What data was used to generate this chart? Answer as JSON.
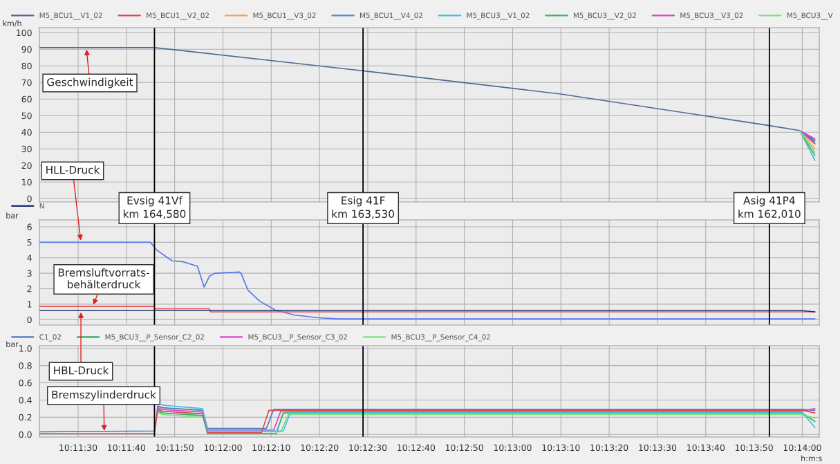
{
  "chart_data": [
    {
      "type": "line",
      "ylabel": "km/h",
      "legend": "top",
      "grid": true,
      "tick_labels": "y",
      "x": [
        10.18944,
        10.19606,
        10.20806,
        10.21944,
        10.23144,
        10.23319,
        10.23406
      ],
      "xlim": [
        10.18944,
        10.23431
      ],
      "xticks": [
        {
          "value": 10.191667,
          "label": null
        },
        {
          "value": 10.194444,
          "label": null
        },
        {
          "value": 10.197222,
          "label": null
        },
        {
          "value": 10.2,
          "label": null
        },
        {
          "value": 10.202778,
          "label": null
        },
        {
          "value": 10.205556,
          "label": null
        },
        {
          "value": 10.208333,
          "label": null
        },
        {
          "value": 10.211111,
          "label": null
        },
        {
          "value": 10.213889,
          "label": null
        },
        {
          "value": 10.216667,
          "label": null
        },
        {
          "value": 10.219444,
          "label": null
        },
        {
          "value": 10.222222,
          "label": null
        },
        {
          "value": 10.225,
          "label": null
        },
        {
          "value": 10.227778,
          "label": null
        },
        {
          "value": 10.230556,
          "label": null
        },
        {
          "value": 10.233333,
          "label": null
        }
      ],
      "ylim": [
        -2,
        103
      ],
      "yticks": [
        0,
        10,
        20,
        30,
        40,
        50,
        60,
        70,
        80,
        90,
        100
      ],
      "series": [
        {
          "name": "M5_BCU1__V1_02",
          "color": "#4f6a8f",
          "values": [
            91,
            91,
            77,
            63,
            44,
            41,
            35
          ]
        },
        {
          "name": "M5_BCU1__V2_02",
          "color": "#e04848",
          "values": [
            null,
            null,
            null,
            null,
            null,
            41,
            33
          ]
        },
        {
          "name": "M5_BCU1__V3_02",
          "color": "#f5a05a",
          "values": [
            null,
            null,
            null,
            null,
            null,
            41,
            30
          ]
        },
        {
          "name": "M5_BCU1__V4_02",
          "color": "#6080e0",
          "values": [
            null,
            null,
            null,
            null,
            null,
            41,
            34
          ]
        },
        {
          "name": "M5_BCU3__V1_02",
          "color": "#40c0e0",
          "values": [
            null,
            null,
            null,
            null,
            null,
            41,
            23
          ]
        },
        {
          "name": "M5_BCU3__V2_02",
          "color": "#40b060",
          "values": [
            null,
            null,
            null,
            null,
            null,
            41,
            26
          ]
        },
        {
          "name": "M5_BCU3__V3_02",
          "color": "#e040d0",
          "values": [
            null,
            null,
            null,
            null,
            null,
            41,
            36
          ]
        },
        {
          "name": "M5_BCU3__V",
          "color": "#80e080",
          "values": [
            null,
            null,
            null,
            null,
            null,
            41,
            28
          ]
        }
      ],
      "ref_lines": [
        {
          "axis": "x",
          "value": 10.19606,
          "color": "#000000"
        },
        {
          "axis": "x",
          "value": 10.20806,
          "color": "#000000"
        },
        {
          "axis": "x",
          "value": 10.23144,
          "color": "#000000"
        }
      ],
      "annotations": [
        {
          "text": "Geschwindigkeit",
          "x": 10.19214,
          "y": 91
        }
      ]
    },
    {
      "type": "line",
      "ylabel": "bar",
      "legend": "top",
      "grid": true,
      "tick_labels": "y",
      "xlim": [
        10.18944,
        10.23431
      ],
      "xticks": [
        {
          "value": 10.191667,
          "label": null
        },
        {
          "value": 10.194444,
          "label": null
        },
        {
          "value": 10.197222,
          "label": null
        },
        {
          "value": 10.2,
          "label": null
        },
        {
          "value": 10.202778,
          "label": null
        },
        {
          "value": 10.205556,
          "label": null
        },
        {
          "value": 10.208333,
          "label": null
        },
        {
          "value": 10.211111,
          "label": null
        },
        {
          "value": 10.213889,
          "label": null
        },
        {
          "value": 10.216667,
          "label": null
        },
        {
          "value": 10.219444,
          "label": null
        },
        {
          "value": 10.222222,
          "label": null
        },
        {
          "value": 10.225,
          "label": null
        },
        {
          "value": 10.227778,
          "label": null
        },
        {
          "value": 10.230556,
          "label": null
        },
        {
          "value": 10.233333,
          "label": null
        }
      ],
      "ylim": [
        -0.35,
        6.45
      ],
      "yticks": [
        0,
        1,
        2,
        3,
        4,
        5,
        6
      ],
      "series": [
        {
          "color": "#5577ee",
          "x": [
            10.18944,
            10.19583,
            10.19619,
            10.19708,
            10.19769,
            10.19853,
            10.19892,
            10.19922,
            10.19953,
            10.20097,
            10.20108,
            10.20144,
            10.20211,
            10.20303,
            10.20411,
            10.20547,
            10.20667,
            10.23406
          ],
          "values": [
            5,
            5,
            4.5,
            3.8,
            3.75,
            3.45,
            2.1,
            2.8,
            3.0,
            3.08,
            2.9,
            1.9,
            1.2,
            0.6,
            0.3,
            0.12,
            0.05,
            0.05
          ]
        },
        {
          "color": "#e85050",
          "x": [
            10.18944,
            10.19603,
            10.19608,
            10.19922,
            10.19928,
            10.23406
          ],
          "values": [
            0.85,
            0.85,
            0.7,
            0.7,
            0.5,
            0.5
          ]
        },
        {
          "name": "N",
          "color": "#1a2f6a",
          "x": [
            10.18944,
            10.23314,
            10.23406
          ],
          "values": [
            0.6,
            0.6,
            0.5
          ]
        }
      ],
      "ref_lines": [
        {
          "axis": "x",
          "value": 10.19606,
          "label": "Evsig 41Vf\nkm 164,580",
          "color": "#000000"
        },
        {
          "axis": "x",
          "value": 10.20806,
          "label": "Esig 41F\nkm 163,530",
          "color": "#000000"
        },
        {
          "axis": "x",
          "value": 10.23144,
          "label": "Asig 41P4\nkm 162,010",
          "color": "#000000"
        }
      ],
      "annotations": [
        {
          "text": "HLL-Druck",
          "x": 10.19183,
          "y": 5
        },
        {
          "text": "Bremsluftvorrats-\nbehälterdruck",
          "x": 10.1925,
          "y": 0.85
        },
        {
          "text": "HBL-Druck",
          "x": 10.19183,
          "y": 0.6
        }
      ]
    },
    {
      "type": "line",
      "ylabel": "bar",
      "xlabel": "h:m:s",
      "legend": "top",
      "grid": true,
      "xlim": [
        10.18944,
        10.23431
      ],
      "xticks": [
        {
          "value": 10.191667,
          "label": "10:11:30"
        },
        {
          "value": 10.194444,
          "label": "10:11:40"
        },
        {
          "value": 10.197222,
          "label": "10:11:50"
        },
        {
          "value": 10.2,
          "label": "10:12:00"
        },
        {
          "value": 10.202778,
          "label": "10:12:10"
        },
        {
          "value": 10.205556,
          "label": "10:12:20"
        },
        {
          "value": 10.208333,
          "label": "10:12:30"
        },
        {
          "value": 10.211111,
          "label": "10:12:40"
        },
        {
          "value": 10.213889,
          "label": "10:12:50"
        },
        {
          "value": 10.216667,
          "label": "10:13:00"
        },
        {
          "value": 10.219444,
          "label": "10:13:10"
        },
        {
          "value": 10.222222,
          "label": "10:13:20"
        },
        {
          "value": 10.225,
          "label": "10:13:30"
        },
        {
          "value": 10.227778,
          "label": "10:13:40"
        },
        {
          "value": 10.230556,
          "label": "10:13:50"
        },
        {
          "value": 10.233333,
          "label": "10:14:00"
        }
      ],
      "ylim": [
        -0.03,
        1.03
      ],
      "yticks": [
        {
          "value": 0,
          "label": "0.0"
        },
        {
          "value": 0.2,
          "label": "0.2"
        },
        {
          "value": 0.4,
          "label": "0.4"
        },
        {
          "value": 0.6,
          "label": "0.6"
        },
        {
          "value": 0.8,
          "label": "0.8"
        },
        {
          "value": 1.0,
          "label": "1.0"
        }
      ],
      "series": [
        {
          "name": "C1_02",
          "color": "#4a78c0",
          "x": [
            10.18944,
            10.19606,
            10.19625,
            10.19653,
            10.19883,
            10.19911,
            10.2025,
            10.20292,
            10.23333,
            10.23406
          ],
          "values": [
            0.03,
            0.04,
            0.33,
            0.31,
            0.28,
            0.07,
            0.07,
            0.29,
            0.29,
            0.28
          ]
        },
        {
          "name": "M5_BCU3__P_Sensor_C2_02",
          "color": "#30a860",
          "x": [
            10.19625,
            10.19653,
            10.19883,
            10.19911,
            10.20306,
            10.20347,
            10.23333,
            10.23406
          ],
          "values": [
            0.27,
            0.25,
            0.22,
            0.01,
            0.01,
            0.25,
            0.25,
            0.15
          ]
        },
        {
          "name": "M5_BCU3__P_Sensor_C3_02",
          "color": "#e040d0",
          "x": [
            10.19625,
            10.19653,
            10.19883,
            10.19911,
            10.20292,
            10.20333,
            10.23333,
            10.23406
          ],
          "values": [
            0.31,
            0.29,
            0.26,
            0.05,
            0.05,
            0.27,
            0.27,
            0.3
          ]
        },
        {
          "name": "M5_BCU3__P_Sensor_C4_02",
          "color": "#80e080",
          "x": [
            10.19625,
            10.19653,
            10.19883,
            10.19911,
            10.20333,
            10.20375,
            10.23333,
            10.23406
          ],
          "values": [
            0.25,
            0.23,
            0.2,
            0.03,
            0.03,
            0.23,
            0.23,
            0.19
          ]
        },
        {
          "color": "#e04848",
          "x": [
            10.18944,
            10.19606,
            10.19625,
            10.19653,
            10.19883,
            10.19911,
            10.20222,
            10.20264,
            10.23333,
            10.23406
          ],
          "values": [
            0.01,
            0.01,
            0.29,
            0.27,
            0.24,
            0.02,
            0.02,
            0.28,
            0.28,
            0.25
          ]
        },
        {
          "color": "#40c0e0",
          "x": [
            10.19625,
            10.19653,
            10.19883,
            10.19911,
            10.20347,
            10.20389,
            10.23333,
            10.23406
          ],
          "values": [
            0.36,
            0.34,
            0.3,
            0.04,
            0.04,
            0.26,
            0.26,
            0.08
          ]
        }
      ],
      "ref_lines": [
        {
          "axis": "x",
          "value": 10.19606,
          "color": "#000000"
        },
        {
          "axis": "x",
          "value": 10.20806,
          "color": "#000000"
        },
        {
          "axis": "x",
          "value": 10.23144,
          "color": "#000000"
        }
      ],
      "annotations": [
        {
          "text": "Bremszylinderdruck",
          "x": 10.19317,
          "y": 0.02
        }
      ]
    }
  ]
}
